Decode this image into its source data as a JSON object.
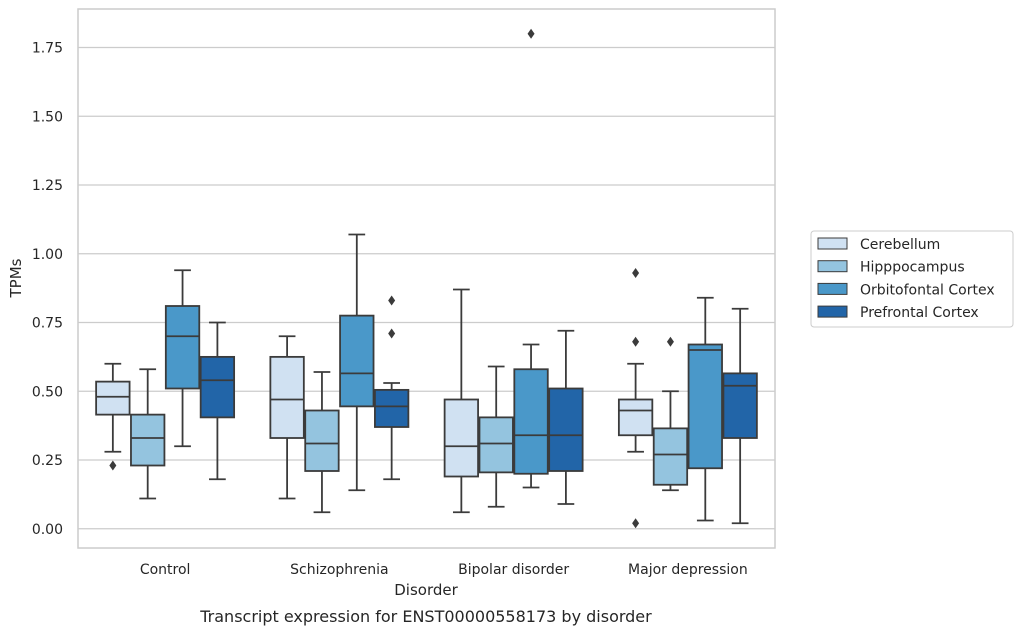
{
  "caption": "Transcript expression for ENST00000558173 by disorder",
  "chart_data": {
    "type": "box",
    "xlabel": "Disorder",
    "ylabel": "TPMs",
    "ylim": [
      -0.07,
      1.89
    ],
    "yticks": [
      "0.00",
      "0.25",
      "0.50",
      "0.75",
      "1.00",
      "1.25",
      "1.50",
      "1.75"
    ],
    "grid": true,
    "legend_position": "right",
    "categories": [
      "Control",
      "Schizophrenia",
      "Bipolar disorder",
      "Major depression"
    ],
    "series": [
      {
        "name": "Cerebellum",
        "color": "#d0e1f2",
        "boxes": [
          {
            "whisker_low": 0.28,
            "q1": 0.415,
            "median": 0.48,
            "q3": 0.535,
            "whisker_high": 0.6,
            "outliers": [
              0.23
            ]
          },
          {
            "whisker_low": 0.11,
            "q1": 0.33,
            "median": 0.47,
            "q3": 0.625,
            "whisker_high": 0.7,
            "outliers": []
          },
          {
            "whisker_low": 0.06,
            "q1": 0.19,
            "median": 0.3,
            "q3": 0.47,
            "whisker_high": 0.87,
            "outliers": []
          },
          {
            "whisker_low": 0.28,
            "q1": 0.34,
            "median": 0.43,
            "q3": 0.47,
            "whisker_high": 0.6,
            "outliers": [
              0.93,
              0.68,
              0.02
            ]
          }
        ]
      },
      {
        "name": "Hipppocampus",
        "color": "#94c4df",
        "boxes": [
          {
            "whisker_low": 0.11,
            "q1": 0.23,
            "median": 0.33,
            "q3": 0.415,
            "whisker_high": 0.58,
            "outliers": []
          },
          {
            "whisker_low": 0.06,
            "q1": 0.21,
            "median": 0.31,
            "q3": 0.43,
            "whisker_high": 0.57,
            "outliers": []
          },
          {
            "whisker_low": 0.08,
            "q1": 0.205,
            "median": 0.31,
            "q3": 0.405,
            "whisker_high": 0.59,
            "outliers": []
          },
          {
            "whisker_low": 0.14,
            "q1": 0.16,
            "median": 0.27,
            "q3": 0.365,
            "whisker_high": 0.5,
            "outliers": [
              0.68
            ]
          }
        ]
      },
      {
        "name": "Orbitofontal Cortex",
        "color": "#4a98c9",
        "boxes": [
          {
            "whisker_low": 0.3,
            "q1": 0.51,
            "median": 0.7,
            "q3": 0.81,
            "whisker_high": 0.94,
            "outliers": []
          },
          {
            "whisker_low": 0.14,
            "q1": 0.445,
            "median": 0.565,
            "q3": 0.775,
            "whisker_high": 1.07,
            "outliers": []
          },
          {
            "whisker_low": 0.15,
            "q1": 0.2,
            "median": 0.34,
            "q3": 0.58,
            "whisker_high": 0.67,
            "outliers": [
              1.8
            ]
          },
          {
            "whisker_low": 0.03,
            "q1": 0.22,
            "median": 0.65,
            "q3": 0.67,
            "whisker_high": 0.84,
            "outliers": []
          }
        ]
      },
      {
        "name": "Prefrontal Cortex",
        "color": "#2265a8",
        "boxes": [
          {
            "whisker_low": 0.18,
            "q1": 0.405,
            "median": 0.54,
            "q3": 0.625,
            "whisker_high": 0.75,
            "outliers": []
          },
          {
            "whisker_low": 0.18,
            "q1": 0.37,
            "median": 0.445,
            "q3": 0.505,
            "whisker_high": 0.53,
            "outliers": [
              0.83,
              0.71
            ]
          },
          {
            "whisker_low": 0.09,
            "q1": 0.21,
            "median": 0.34,
            "q3": 0.51,
            "whisker_high": 0.72,
            "outliers": []
          },
          {
            "whisker_low": 0.02,
            "q1": 0.33,
            "median": 0.52,
            "q3": 0.565,
            "whisker_high": 0.8,
            "outliers": []
          }
        ]
      }
    ]
  }
}
